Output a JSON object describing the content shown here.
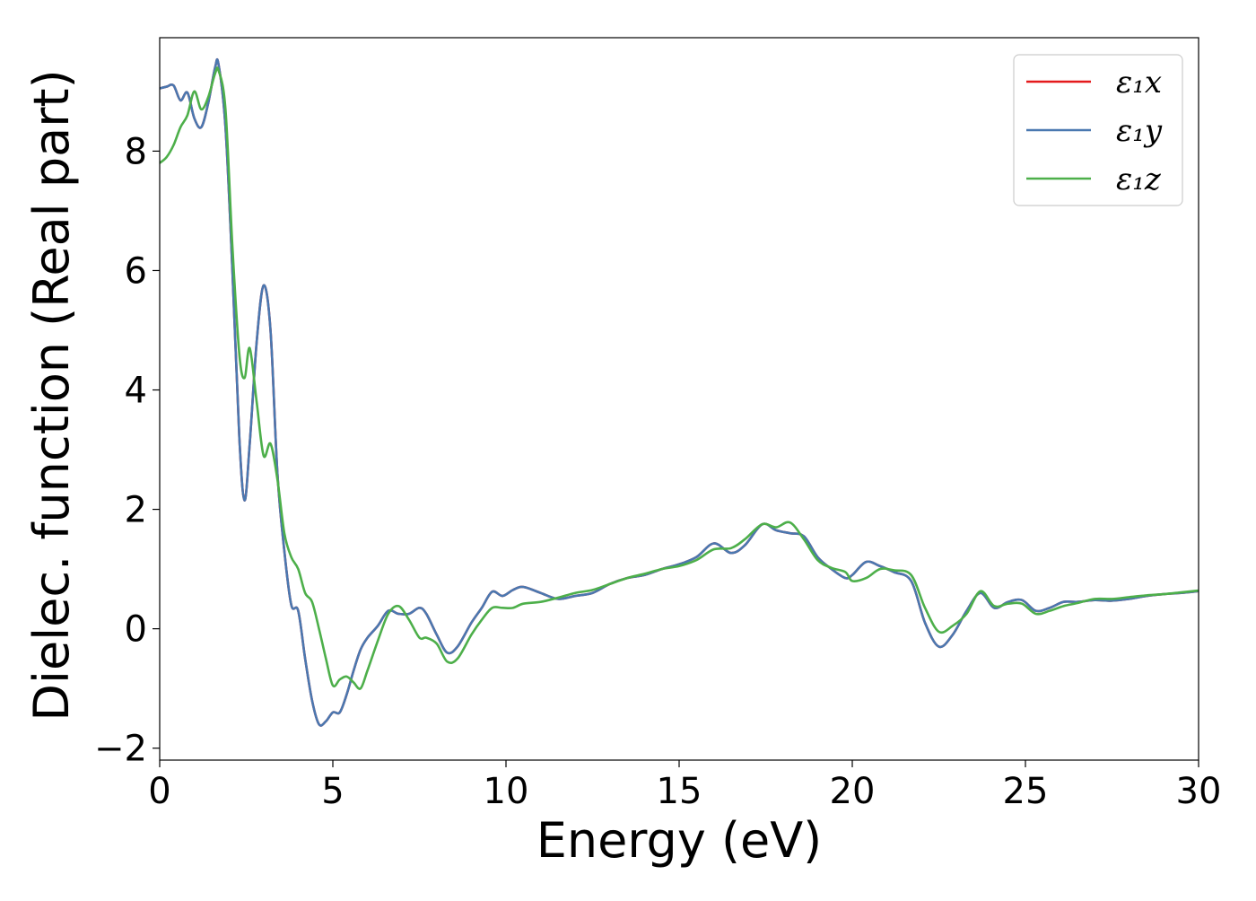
{
  "chart_data": {
    "type": "line",
    "title": "",
    "xlabel": "Energy (eV)",
    "ylabel": "Dielec. function (Real part)",
    "xlim": [
      0,
      30
    ],
    "ylim": [
      -2.2,
      9.9
    ],
    "xticks": [
      0,
      5,
      10,
      15,
      20,
      25,
      30
    ],
    "xtick_labels": [
      "0",
      "5",
      "10",
      "15",
      "20",
      "25",
      "30"
    ],
    "yticks": [
      -2,
      0,
      2,
      4,
      6,
      8
    ],
    "ytick_labels": [
      "−2",
      "0",
      "2",
      "4",
      "6",
      "8"
    ],
    "grid": false,
    "legend_position": "top-right",
    "legend": [
      "ε₁x",
      "ε₁y",
      "ε₁z"
    ],
    "series": [
      {
        "name": "ε₁x",
        "color": "#e41a1c",
        "x": [
          0,
          0.2,
          0.4,
          0.6,
          0.8,
          1.0,
          1.2,
          1.4,
          1.6,
          1.7,
          1.9,
          2.1,
          2.3,
          2.45,
          2.6,
          2.8,
          3.0,
          3.2,
          3.4,
          3.6,
          3.8,
          4.0,
          4.2,
          4.4,
          4.6,
          4.8,
          5.0,
          5.2,
          5.4,
          5.6,
          5.8,
          6.0,
          6.3,
          6.6,
          6.9,
          7.2,
          7.5,
          7.7,
          8.0,
          8.3,
          8.6,
          9.0,
          9.3,
          9.6,
          9.9,
          10.2,
          10.5,
          11.0,
          11.5,
          12.0,
          12.5,
          13.0,
          13.5,
          14.0,
          14.5,
          15.0,
          15.5,
          16.0,
          16.5,
          16.9,
          17.4,
          17.8,
          18.2,
          18.6,
          19.0,
          19.4,
          19.8,
          20.0,
          20.4,
          20.8,
          21.2,
          21.7,
          22.1,
          22.5,
          22.9,
          23.3,
          23.7,
          24.1,
          24.5,
          24.9,
          25.3,
          25.7,
          26.1,
          26.5,
          27.0,
          27.5,
          28.0,
          28.5,
          29.0,
          29.5,
          30.0
        ],
        "values": [
          9.05,
          9.08,
          9.1,
          8.85,
          8.98,
          8.55,
          8.4,
          8.8,
          9.4,
          9.45,
          8.4,
          6.0,
          3.2,
          2.15,
          3.1,
          4.8,
          5.75,
          5.0,
          2.6,
          1.3,
          0.4,
          0.3,
          -0.5,
          -1.2,
          -1.6,
          -1.55,
          -1.4,
          -1.4,
          -1.1,
          -0.7,
          -0.35,
          -0.15,
          0.05,
          0.3,
          0.25,
          0.25,
          0.35,
          0.25,
          -0.1,
          -0.4,
          -0.3,
          0.1,
          0.35,
          0.62,
          0.55,
          0.65,
          0.7,
          0.6,
          0.5,
          0.55,
          0.6,
          0.75,
          0.85,
          0.9,
          1.0,
          1.08,
          1.2,
          1.43,
          1.27,
          1.4,
          1.75,
          1.65,
          1.6,
          1.55,
          1.2,
          1.0,
          0.85,
          0.9,
          1.12,
          1.05,
          0.95,
          0.8,
          0.1,
          -0.3,
          -0.1,
          0.3,
          0.6,
          0.35,
          0.45,
          0.48,
          0.3,
          0.35,
          0.45,
          0.45,
          0.48,
          0.47,
          0.5,
          0.55,
          0.58,
          0.6,
          0.63
        ]
      },
      {
        "name": "ε₁y",
        "color": "#4a78b0",
        "x": [
          0,
          0.2,
          0.4,
          0.6,
          0.8,
          1.0,
          1.2,
          1.4,
          1.6,
          1.7,
          1.9,
          2.1,
          2.3,
          2.45,
          2.6,
          2.8,
          3.0,
          3.2,
          3.4,
          3.6,
          3.8,
          4.0,
          4.2,
          4.4,
          4.6,
          4.8,
          5.0,
          5.2,
          5.4,
          5.6,
          5.8,
          6.0,
          6.3,
          6.6,
          6.9,
          7.2,
          7.5,
          7.7,
          8.0,
          8.3,
          8.6,
          9.0,
          9.3,
          9.6,
          9.9,
          10.2,
          10.5,
          11.0,
          11.5,
          12.0,
          12.5,
          13.0,
          13.5,
          14.0,
          14.5,
          15.0,
          15.5,
          16.0,
          16.5,
          16.9,
          17.4,
          17.8,
          18.2,
          18.6,
          19.0,
          19.4,
          19.8,
          20.0,
          20.4,
          20.8,
          21.2,
          21.7,
          22.1,
          22.5,
          22.9,
          23.3,
          23.7,
          24.1,
          24.5,
          24.9,
          25.3,
          25.7,
          26.1,
          26.5,
          27.0,
          27.5,
          28.0,
          28.5,
          29.0,
          29.5,
          30.0
        ],
        "values": [
          9.05,
          9.08,
          9.1,
          8.85,
          8.98,
          8.55,
          8.4,
          8.8,
          9.4,
          9.45,
          8.4,
          6.0,
          3.2,
          2.15,
          3.1,
          4.8,
          5.75,
          5.0,
          2.6,
          1.3,
          0.4,
          0.3,
          -0.5,
          -1.2,
          -1.6,
          -1.55,
          -1.4,
          -1.4,
          -1.1,
          -0.7,
          -0.35,
          -0.15,
          0.05,
          0.3,
          0.25,
          0.25,
          0.35,
          0.25,
          -0.1,
          -0.4,
          -0.3,
          0.1,
          0.35,
          0.62,
          0.55,
          0.65,
          0.7,
          0.6,
          0.5,
          0.55,
          0.6,
          0.75,
          0.85,
          0.9,
          1.0,
          1.08,
          1.2,
          1.43,
          1.27,
          1.4,
          1.75,
          1.65,
          1.6,
          1.55,
          1.2,
          1.0,
          0.85,
          0.9,
          1.12,
          1.05,
          0.95,
          0.8,
          0.1,
          -0.3,
          -0.1,
          0.3,
          0.6,
          0.35,
          0.45,
          0.48,
          0.3,
          0.35,
          0.45,
          0.45,
          0.48,
          0.47,
          0.5,
          0.55,
          0.58,
          0.6,
          0.63
        ]
      },
      {
        "name": "ε₁z",
        "color": "#4daf4a",
        "x": [
          0,
          0.2,
          0.4,
          0.6,
          0.8,
          1.0,
          1.2,
          1.4,
          1.6,
          1.7,
          1.9,
          2.1,
          2.3,
          2.45,
          2.6,
          2.8,
          3.0,
          3.2,
          3.4,
          3.6,
          3.8,
          4.0,
          4.2,
          4.4,
          4.6,
          4.8,
          5.0,
          5.2,
          5.4,
          5.6,
          5.8,
          6.0,
          6.3,
          6.6,
          6.9,
          7.2,
          7.5,
          7.7,
          8.0,
          8.3,
          8.6,
          9.0,
          9.3,
          9.6,
          9.9,
          10.2,
          10.5,
          11.0,
          11.5,
          12.0,
          12.5,
          13.0,
          13.5,
          14.0,
          14.5,
          15.0,
          15.5,
          16.0,
          16.5,
          16.9,
          17.4,
          17.8,
          18.2,
          18.6,
          19.0,
          19.4,
          19.8,
          20.0,
          20.4,
          20.8,
          21.2,
          21.7,
          22.1,
          22.5,
          22.9,
          23.3,
          23.7,
          24.1,
          24.5,
          24.9,
          25.3,
          25.7,
          26.1,
          26.5,
          27.0,
          27.5,
          28.0,
          28.5,
          29.0,
          29.5,
          30.0
        ],
        "values": [
          7.8,
          7.9,
          8.1,
          8.4,
          8.6,
          9.0,
          8.7,
          8.9,
          9.3,
          9.35,
          8.7,
          6.4,
          4.6,
          4.2,
          4.7,
          3.8,
          2.9,
          3.1,
          2.5,
          1.6,
          1.2,
          1.0,
          0.6,
          0.45,
          0.0,
          -0.5,
          -0.95,
          -0.85,
          -0.8,
          -0.9,
          -1.0,
          -0.7,
          -0.2,
          0.25,
          0.38,
          0.15,
          -0.15,
          -0.15,
          -0.25,
          -0.55,
          -0.5,
          -0.1,
          0.15,
          0.35,
          0.35,
          0.35,
          0.42,
          0.45,
          0.52,
          0.6,
          0.65,
          0.75,
          0.85,
          0.92,
          1.0,
          1.05,
          1.15,
          1.33,
          1.35,
          1.5,
          1.75,
          1.7,
          1.78,
          1.5,
          1.15,
          1.02,
          0.95,
          0.8,
          0.85,
          1.0,
          0.98,
          0.9,
          0.35,
          -0.05,
          0.05,
          0.25,
          0.63,
          0.38,
          0.42,
          0.42,
          0.25,
          0.3,
          0.38,
          0.43,
          0.5,
          0.5,
          0.53,
          0.56,
          0.58,
          0.61,
          0.64
        ]
      }
    ]
  }
}
